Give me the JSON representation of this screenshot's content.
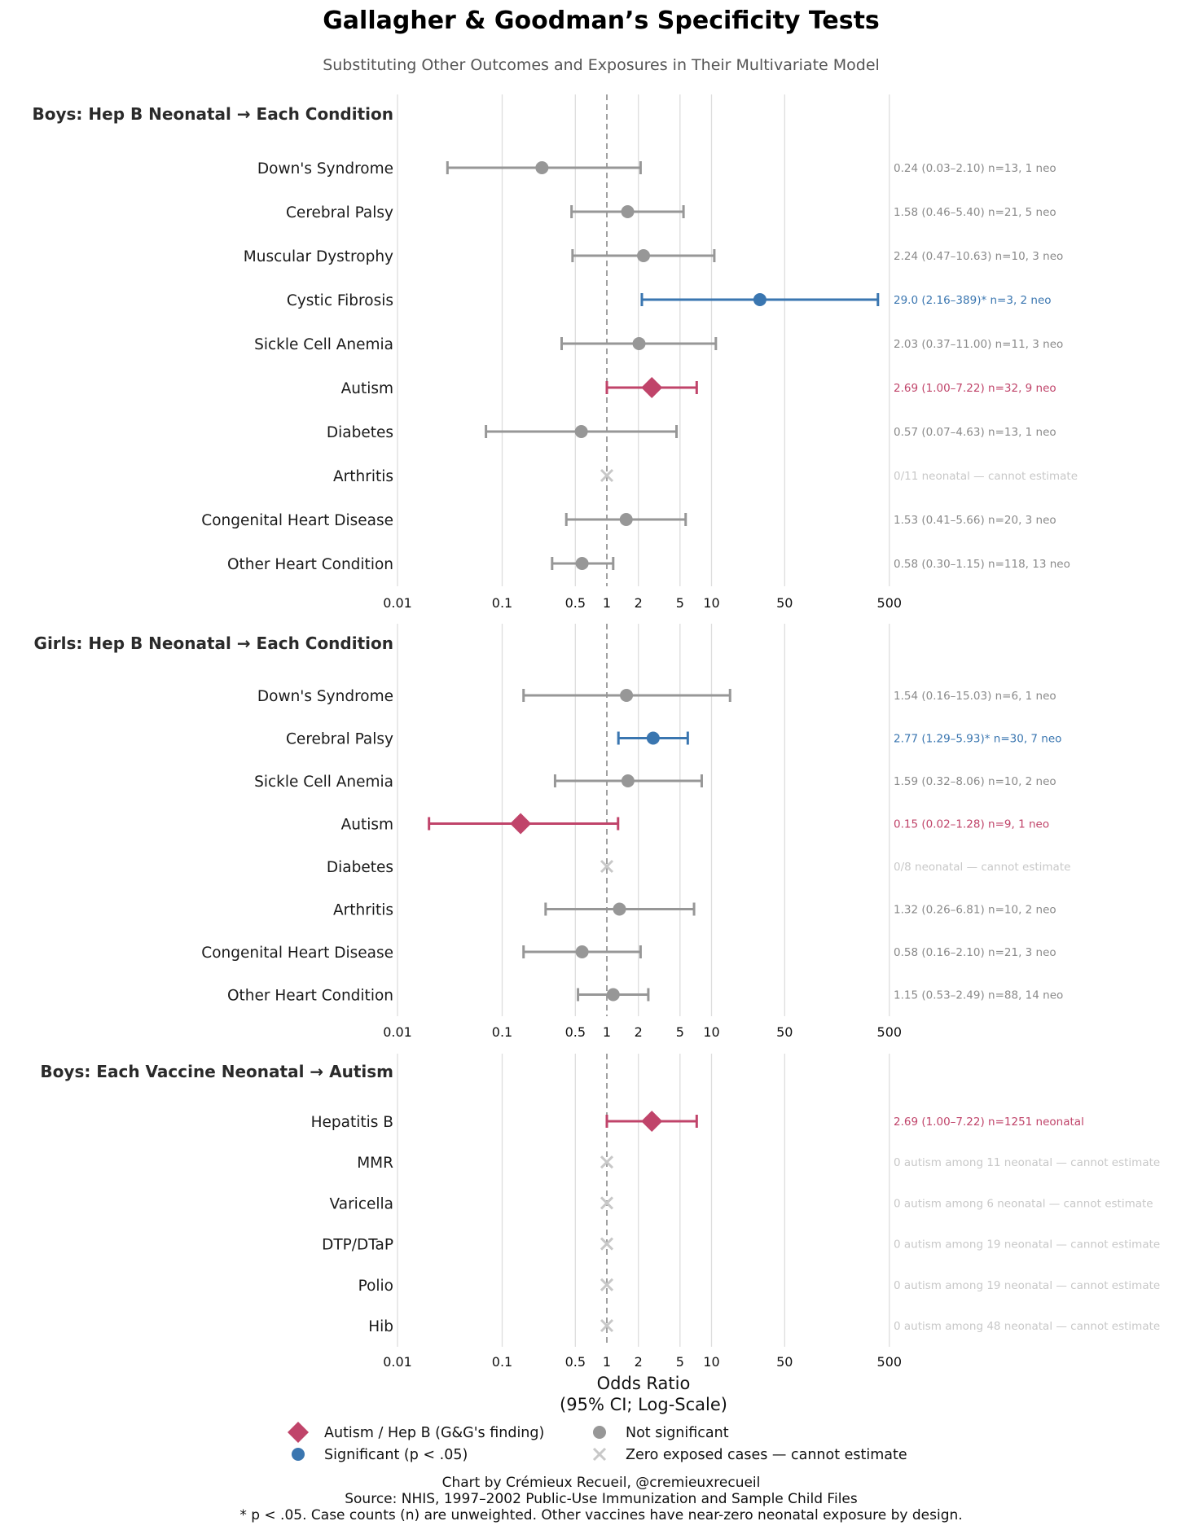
{
  "colors": {
    "highlight": "#c0446a",
    "significant": "#3a76b0",
    "not_significant": "#979797",
    "zero": "#c8c8c8",
    "grid": "#dddddd",
    "ref_line": "#a0a0a0"
  },
  "chart_data": {
    "type": "forest",
    "title": "Gallagher & Goodman’s Specificity Tests",
    "subtitle": "Substituting Other Outcomes and Exposures in Their Multivariate Model",
    "xlabel_line1": "Odds Ratio",
    "xlabel_line2": "(95% CI; Log-Scale)",
    "xscale": "log",
    "xlim": [
      0.01,
      500
    ],
    "reference_line": 1,
    "ticks": [
      0.01,
      0.1,
      0.5,
      1,
      2,
      5,
      10,
      50,
      500
    ],
    "tick_labels": [
      "0.01",
      "0.1",
      "0.5",
      "1",
      "2",
      "5",
      "10",
      "50",
      "500"
    ],
    "panels": [
      {
        "title": "Boys: Hep B Neonatal → Each Condition",
        "rows": [
          {
            "label": "Down's Syndrome",
            "or": 0.24,
            "lo": 0.03,
            "hi": 2.1,
            "status": "ns",
            "note": "0.24 (0.03–2.10)  n=13, 1 neo"
          },
          {
            "label": "Cerebral Palsy",
            "or": 1.58,
            "lo": 0.46,
            "hi": 5.4,
            "status": "ns",
            "note": "1.58 (0.46–5.40)  n=21, 5 neo"
          },
          {
            "label": "Muscular Dystrophy",
            "or": 2.24,
            "lo": 0.47,
            "hi": 10.63,
            "status": "ns",
            "note": "2.24 (0.47–10.63)  n=10, 3 neo"
          },
          {
            "label": "Cystic Fibrosis",
            "or": 29.0,
            "lo": 2.16,
            "hi": 389,
            "status": "sig",
            "note": "29.0 (2.16–389)*  n=3, 2 neo"
          },
          {
            "label": "Sickle Cell Anemia",
            "or": 2.03,
            "lo": 0.37,
            "hi": 11.0,
            "status": "ns",
            "note": "2.03 (0.37–11.00)  n=11, 3 neo"
          },
          {
            "label": "Autism",
            "or": 2.69,
            "lo": 1.0,
            "hi": 7.22,
            "status": "highlight",
            "note": "2.69 (1.00–7.22)  n=32, 9 neo"
          },
          {
            "label": "Diabetes",
            "or": 0.57,
            "lo": 0.07,
            "hi": 4.63,
            "status": "ns",
            "note": "0.57 (0.07–4.63)  n=13, 1 neo"
          },
          {
            "label": "Arthritis",
            "or": null,
            "lo": null,
            "hi": null,
            "status": "zero",
            "note": "0/11 neonatal — cannot estimate"
          },
          {
            "label": "Congenital Heart Disease",
            "or": 1.53,
            "lo": 0.41,
            "hi": 5.66,
            "status": "ns",
            "note": "1.53 (0.41–5.66)  n=20, 3 neo"
          },
          {
            "label": "Other Heart Condition",
            "or": 0.58,
            "lo": 0.3,
            "hi": 1.15,
            "status": "ns",
            "note": "0.58 (0.30–1.15)  n=118, 13 neo"
          }
        ]
      },
      {
        "title": "Girls: Hep B Neonatal → Each Condition",
        "rows": [
          {
            "label": "Down's Syndrome",
            "or": 1.54,
            "lo": 0.16,
            "hi": 15.03,
            "status": "ns",
            "note": "1.54 (0.16–15.03)  n=6, 1 neo"
          },
          {
            "label": "Cerebral Palsy",
            "or": 2.77,
            "lo": 1.29,
            "hi": 5.93,
            "status": "sig",
            "note": "2.77 (1.29–5.93)*  n=30, 7 neo"
          },
          {
            "label": "Sickle Cell Anemia",
            "or": 1.59,
            "lo": 0.32,
            "hi": 8.06,
            "status": "ns",
            "note": "1.59 (0.32–8.06)  n=10, 2 neo"
          },
          {
            "label": "Autism",
            "or": 0.15,
            "lo": 0.02,
            "hi": 1.28,
            "status": "highlight",
            "note": "0.15 (0.02–1.28)  n=9, 1 neo"
          },
          {
            "label": "Diabetes",
            "or": null,
            "lo": null,
            "hi": null,
            "status": "zero",
            "note": "0/8 neonatal — cannot estimate"
          },
          {
            "label": "Arthritis",
            "or": 1.32,
            "lo": 0.26,
            "hi": 6.81,
            "status": "ns",
            "note": "1.32 (0.26–6.81)  n=10, 2 neo"
          },
          {
            "label": "Congenital Heart Disease",
            "or": 0.58,
            "lo": 0.16,
            "hi": 2.1,
            "status": "ns",
            "note": "0.58 (0.16–2.10)  n=21, 3 neo"
          },
          {
            "label": "Other Heart Condition",
            "or": 1.15,
            "lo": 0.53,
            "hi": 2.49,
            "status": "ns",
            "note": "1.15 (0.53–2.49)  n=88, 14 neo"
          }
        ]
      },
      {
        "title": "Boys: Each Vaccine Neonatal → Autism",
        "rows": [
          {
            "label": "Hepatitis B",
            "or": 2.69,
            "lo": 1.0,
            "hi": 7.22,
            "status": "highlight",
            "note": "2.69 (1.00–7.22)  n=1251 neonatal"
          },
          {
            "label": "MMR",
            "or": null,
            "lo": null,
            "hi": null,
            "status": "zero",
            "note": "0 autism among 11 neonatal — cannot estimate"
          },
          {
            "label": "Varicella",
            "or": null,
            "lo": null,
            "hi": null,
            "status": "zero",
            "note": "0 autism among 6 neonatal — cannot estimate"
          },
          {
            "label": "DTP/DTaP",
            "or": null,
            "lo": null,
            "hi": null,
            "status": "zero",
            "note": "0 autism among 19 neonatal — cannot estimate"
          },
          {
            "label": "Polio",
            "or": null,
            "lo": null,
            "hi": null,
            "status": "zero",
            "note": "0 autism among 19 neonatal — cannot estimate"
          },
          {
            "label": "Hib",
            "or": null,
            "lo": null,
            "hi": null,
            "status": "zero",
            "note": "0 autism among 48 neonatal — cannot estimate"
          }
        ]
      }
    ],
    "legend": {
      "placement": "bottom-center",
      "items": [
        {
          "label": "Autism / Hep B (G&G's finding)",
          "status": "highlight"
        },
        {
          "label": "Not significant",
          "status": "ns"
        },
        {
          "label": "Significant (p < .05)",
          "status": "sig"
        },
        {
          "label": "Zero exposed cases — cannot estimate",
          "status": "zero"
        }
      ]
    },
    "footer": [
      "Chart by Crémieux Recueil, @cremieuxrecueil",
      "Source: NHIS, 1997–2002 Public-Use Immunization and Sample Child Files",
      "* p < .05. Case counts (n) are unweighted. Other vaccines have near-zero neonatal exposure by design."
    ]
  }
}
